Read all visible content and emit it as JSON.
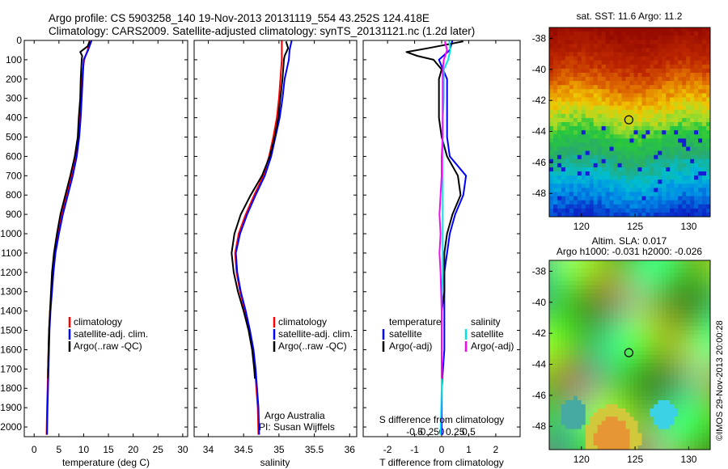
{
  "header": {
    "line1": "Argo profile: CS 5903258_140 19-Nov-2013 20131119_554 43.252S 124.418E",
    "line2": "Climatology: CARS2009. Satellite-adjusted climatology: synTS_20131121.nc (1.2d later)"
  },
  "chart_data": [
    {
      "type": "line",
      "name": "temperature-panel",
      "xlabel": "temperature (deg C)",
      "ylabel": "",
      "xlim": [
        -2,
        31
      ],
      "ylim": [
        2050,
        0
      ],
      "xticks": [
        0,
        5,
        10,
        15,
        20,
        25,
        30
      ],
      "yticks": [
        0,
        100,
        200,
        300,
        400,
        500,
        600,
        700,
        800,
        900,
        1000,
        1100,
        1200,
        1300,
        1400,
        1500,
        1600,
        1700,
        1800,
        1900,
        2000
      ],
      "legend": [
        {
          "label": "climatology",
          "color": "#ff0000"
        },
        {
          "label": "satellite-adj. clim.",
          "color": "#0000ff"
        },
        {
          "label": "Argo(..raw -QC)",
          "color": "#000000"
        }
      ],
      "series": [
        {
          "name": "climatology",
          "color": "#ff0000",
          "depth": [
            0,
            50,
            100,
            200,
            300,
            400,
            500,
            600,
            700,
            800,
            900,
            1000,
            1100,
            1200,
            1300,
            1400,
            1500,
            1600,
            1700,
            1800,
            1900,
            2040
          ],
          "values": [
            11.2,
            10.8,
            10.1,
            9.6,
            9.4,
            9.2,
            8.9,
            8.4,
            7.6,
            6.6,
            5.6,
            4.8,
            4.2,
            3.8,
            3.5,
            3.2,
            3.0,
            2.9,
            2.8,
            2.7,
            2.6,
            2.5
          ]
        },
        {
          "name": "satellite",
          "color": "#0000ff",
          "depth": [
            0,
            50,
            100,
            200,
            300,
            400,
            500,
            600,
            700,
            800,
            900,
            1000,
            1100,
            1200,
            1300,
            1400,
            1500,
            1600,
            1700,
            1800,
            1900,
            2040
          ],
          "values": [
            11.6,
            10.9,
            10.0,
            9.8,
            9.6,
            9.4,
            9.1,
            8.6,
            7.8,
            6.8,
            5.8,
            5.0,
            4.3,
            3.9,
            3.6,
            3.3,
            3.1,
            3.0,
            2.9,
            2.8,
            2.7,
            2.6
          ]
        },
        {
          "name": "argo",
          "color": "#000000",
          "depth": [
            5,
            30,
            60,
            80,
            100,
            200,
            300,
            400,
            500,
            600,
            700,
            800,
            900,
            1000,
            1100,
            1200,
            1300,
            1400,
            1500,
            1600,
            1700,
            1750
          ],
          "values": [
            11.2,
            10.8,
            9.3,
            9.7,
            9.6,
            9.4,
            9.3,
            9.0,
            8.8,
            8.2,
            7.3,
            6.3,
            5.3,
            4.6,
            4.0,
            3.6,
            3.4,
            3.2,
            3.0,
            2.9,
            2.8,
            2.8
          ]
        }
      ]
    },
    {
      "type": "line",
      "name": "salinity-panel",
      "xlabel": "salinity",
      "xlim": [
        33.8,
        36.1
      ],
      "ylim": [
        2050,
        0
      ],
      "xticks": [
        34,
        34.5,
        35,
        35.5,
        36
      ],
      "xtick_labels": [
        "34",
        "34.5",
        "35",
        "35.5",
        "36"
      ],
      "legend": [
        {
          "label": "climatology",
          "color": "#ff0000"
        },
        {
          "label": "satellite-adj. clim.",
          "color": "#0000ff"
        },
        {
          "label": "Argo(..raw -QC)",
          "color": "#000000"
        }
      ],
      "annotation": [
        "Argo Australia",
        "PI: Susan Wijffels"
      ],
      "series": [
        {
          "name": "climatology",
          "color": "#ff0000",
          "depth": [
            0,
            100,
            200,
            300,
            400,
            500,
            600,
            700,
            800,
            900,
            1000,
            1100,
            1200,
            1300,
            1400,
            1500,
            1600,
            1700,
            1800,
            1900,
            2040
          ],
          "values": [
            35.04,
            35.04,
            35.02,
            35.0,
            34.97,
            34.92,
            34.86,
            34.78,
            34.65,
            34.53,
            34.43,
            34.38,
            34.4,
            34.45,
            34.52,
            34.58,
            34.63,
            34.66,
            34.68,
            34.7,
            34.71
          ]
        },
        {
          "name": "satellite",
          "color": "#0000ff",
          "depth": [
            0,
            50,
            100,
            200,
            300,
            400,
            500,
            600,
            700,
            800,
            900,
            1000,
            1100,
            1200,
            1300,
            1400,
            1500,
            1600,
            1700,
            1800,
            1900,
            2040
          ],
          "values": [
            35.18,
            35.15,
            35.14,
            35.08,
            35.05,
            35.01,
            34.95,
            34.89,
            34.8,
            34.67,
            34.55,
            34.45,
            34.39,
            34.41,
            34.46,
            34.53,
            34.59,
            34.64,
            34.67,
            34.69,
            34.71,
            34.72
          ]
        },
        {
          "name": "argo",
          "color": "#000000",
          "depth": [
            5,
            40,
            80,
            100,
            200,
            300,
            400,
            500,
            600,
            700,
            800,
            900,
            1000,
            1100,
            1200,
            1300,
            1400,
            1500,
            1600,
            1700,
            1750
          ],
          "values": [
            35.1,
            35.13,
            35.08,
            35.07,
            35.05,
            35.02,
            34.99,
            34.94,
            34.87,
            34.76,
            34.6,
            34.46,
            34.37,
            34.33,
            34.36,
            34.42,
            34.5,
            34.57,
            34.62,
            34.65,
            34.66
          ]
        }
      ]
    },
    {
      "type": "line",
      "name": "difference-panel",
      "xlabel": "T difference from climatology",
      "title_bottom": "S difference from climatology",
      "xlim": [
        -2.9,
        2.9
      ],
      "ylim": [
        2050,
        0
      ],
      "xticks": [
        -2,
        -1,
        0,
        1,
        2
      ],
      "xtick_labels": [
        "-2",
        "-1",
        "0",
        "1",
        "2"
      ],
      "sticks": [
        -1,
        -0.5,
        0,
        0.5,
        1
      ],
      "stick_labels": [
        "-0.5",
        "-0.25",
        "0",
        "0.25",
        "0.5"
      ],
      "legend_temperature": {
        "heading": "temperature",
        "items": [
          {
            "label": "satellite",
            "color": "#0000ff"
          },
          {
            "label": "Argo(-adj)",
            "color": "#000000"
          }
        ]
      },
      "legend_salinity": {
        "heading": "salinity",
        "items": [
          {
            "label": "satellite",
            "color": "#00e5e5"
          },
          {
            "label": "Argo(-adj)",
            "color": "#ff00ff"
          }
        ]
      },
      "series": [
        {
          "name": "T satellite",
          "color": "#0000ff",
          "depth": [
            0,
            50,
            100,
            200,
            300,
            400,
            500,
            600,
            700,
            800,
            900,
            1000,
            1100,
            1200,
            1300,
            1400,
            1600,
            1800,
            2040
          ],
          "values": [
            0.4,
            0.3,
            -0.1,
            0.2,
            0.2,
            0.2,
            0.2,
            0.3,
            0.9,
            0.8,
            0.5,
            0.3,
            0.2,
            0.1,
            0.1,
            0.1,
            0.1,
            0.0,
            0.0
          ]
        },
        {
          "name": "T argo",
          "color": "#000000",
          "depth": [
            5,
            40,
            60,
            80,
            100,
            150,
            200,
            300,
            400,
            500,
            600,
            700,
            800,
            900,
            1000,
            1100,
            1200,
            1300,
            1400,
            1500,
            1600,
            1700,
            1750
          ],
          "values": [
            0.8,
            -0.5,
            -1.3,
            -0.9,
            -0.3,
            0.0,
            -0.1,
            -0.1,
            -0.1,
            0.0,
            0.2,
            0.6,
            0.7,
            0.4,
            0.2,
            0.1,
            0.1,
            0.1,
            0.0,
            0.0,
            0.0,
            0.0,
            0.0
          ]
        },
        {
          "name": "S satellite",
          "color": "#00e5e5",
          "depth": [
            0,
            50,
            100,
            150,
            200,
            300,
            400,
            600,
            800,
            1000,
            1200,
            1400,
            1600,
            1800,
            2040
          ],
          "values": [
            0.07,
            0.08,
            0.06,
            0.02,
            0.02,
            0.02,
            0.01,
            0.01,
            0.01,
            0.01,
            0.01,
            0.0,
            0.0,
            0.0,
            -0.01
          ]
        },
        {
          "name": "S argo",
          "color": "#ff00ff",
          "depth": [
            5,
            50,
            100,
            150,
            200,
            300,
            400,
            500,
            600,
            700,
            800,
            900,
            1000,
            1100,
            1200,
            1400,
            1600,
            1750
          ],
          "values": [
            0.03,
            0.05,
            0.02,
            0.01,
            0.01,
            0.01,
            0.01,
            0.01,
            0.0,
            0.0,
            -0.01,
            -0.02,
            -0.01,
            -0.02,
            -0.01,
            0.0,
            0.0,
            0.0
          ]
        }
      ]
    },
    {
      "type": "heatmap",
      "name": "sst-map",
      "title": "sat. SST: 11.6  Argo: 11.2",
      "xlim": [
        117,
        132
      ],
      "ylim": [
        -49.5,
        -37.3
      ],
      "xticks": [
        120,
        125,
        130
      ],
      "yticks": [
        -38,
        -40,
        -42,
        -44,
        -46,
        -48
      ],
      "marker": {
        "lon": 124.418,
        "lat": -43.252
      }
    },
    {
      "type": "heatmap",
      "name": "sla-map",
      "title": "Altim. SLA: 0.017",
      "subtitle": "Argo h1000: -0.031  h2000: -0.026",
      "xlim": [
        117,
        132
      ],
      "ylim": [
        -49.5,
        -37.3
      ],
      "xticks": [
        120,
        125,
        130
      ],
      "yticks": [
        -38,
        -40,
        -42,
        -44,
        -46,
        -48
      ],
      "marker": {
        "lon": 124.418,
        "lat": -43.252
      }
    }
  ],
  "footer": {
    "side_label": "©IMOS 29-Nov-2013 20:00:28"
  }
}
